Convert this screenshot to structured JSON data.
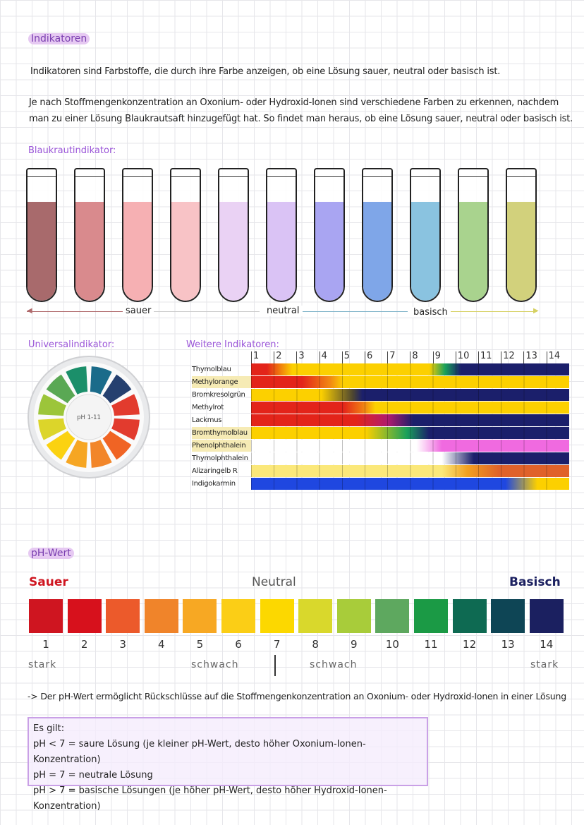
{
  "section1": {
    "title": "Indikatoren",
    "p1": "Indikatoren sind Farbstoffe, die durch ihre Farbe anzeigen, ob eine Lösung sauer, neutral oder basisch ist.",
    "p2a": "Je nach Stoffmengenkonzentration an Oxonium- oder Hydroxid-Ionen sind verschiedene Farben zu erkennen, nachdem",
    "p2b": "man zu einer Lösung Blaukrautsaft hinzugefügt hat. So findet man heraus, ob eine Lösung sauer, neutral oder basisch ist."
  },
  "blaukraut": {
    "title": "Blaukrautindikator:",
    "tube_colors": [
      "#a86a6c",
      "#d98a8d",
      "#f6b0b3",
      "#f8c3c6",
      "#ead2f4",
      "#dac3f5",
      "#a9a5f2",
      "#7fa6e8",
      "#8ac3e0",
      "#a9d38e",
      "#d2d17c"
    ],
    "scale": {
      "sauer": "sauer",
      "neutral": "neutral",
      "basisch": "basisch"
    }
  },
  "universal": {
    "title": "Universalindikator:",
    "center_label": "pH 1-11"
  },
  "weitere": {
    "title": "Weitere Indikatoren:",
    "ph_header": [
      "1",
      "2",
      "3",
      "4",
      "5",
      "6",
      "7",
      "8",
      "9",
      "10",
      "11",
      "12",
      "13",
      "14"
    ],
    "indicators": [
      {
        "name": "Thymolblau",
        "highlight": false,
        "bar": "linear-gradient(90deg,#e3241a 0%,#e3241a 5%,#fcd000 13%,#fcd000 56%,#19a05a 61%,#1b1f6b 66%,#1b1f6b 100%)"
      },
      {
        "name": "Methylorange",
        "highlight": true,
        "bar": "linear-gradient(90deg,#e3241a 0%,#e3241a 16%,#f28a12 25%,#fcd000 29%,#fcd000 100%)"
      },
      {
        "name": "Bromkresolgrün",
        "highlight": false,
        "bar": "linear-gradient(90deg,#fcd000 0%,#fcd000 22%,#4d4630 32%,#1b1f6b 35%,#1b1f6b 100%)"
      },
      {
        "name": "Methylrot",
        "highlight": false,
        "bar": "linear-gradient(90deg,#e3241a 0%,#e3241a 29%,#f28a12 36%,#fcd000 39%,#fcd000 100%)"
      },
      {
        "name": "Lackmus",
        "highlight": false,
        "bar": "linear-gradient(90deg,#e3241a 0%,#e3241a 33%,#b01b6e 43%,#1b1f6b 51%,#1b1f6b 100%)"
      },
      {
        "name": "Bromthymolblau",
        "highlight": true,
        "bar": "linear-gradient(90deg,#fcd000 0%,#fcd000 36%,#19a05a 49%,#1b1f6b 56%,#1b1f6b 100%)"
      },
      {
        "name": "Phenolphthalein",
        "highlight": true,
        "bar": "linear-gradient(90deg,#ffffff 0%,#ffffff 52%,#f06ae0 60%,#f06ae0 100%)"
      },
      {
        "name": "Thymolphthalein",
        "highlight": false,
        "bar": "linear-gradient(90deg,#ffffff 0%,#ffffff 60%,#1b1f6b 70%,#1b1f6b 100%)"
      },
      {
        "name": "Alizaringelb R",
        "highlight": false,
        "bar": "linear-gradient(90deg,#fbe87a 0%,#fbe87a 60%,#f2a020 68%,#e0622a 78%,#e0622a 100%)"
      },
      {
        "name": "Indigokarmin",
        "highlight": false,
        "bar": "linear-gradient(90deg,#1f47e0 0%,#1f47e0 80%,#fcd000 90%,#fcd000 100%)"
      }
    ]
  },
  "phwert": {
    "title": "pH-Wert",
    "sauer": "Sauer",
    "neutral": "Neutral",
    "basisch": "Basisch",
    "colors": [
      "#cf1520",
      "#d7111c",
      "#ec5a2b",
      "#f0842a",
      "#f7a823",
      "#fbce16",
      "#fcd800",
      "#d9d82c",
      "#a8cc3a",
      "#5ea85f",
      "#1b9a45",
      "#0e6a52",
      "#0e4555",
      "#1b2060"
    ],
    "numbers": [
      "1",
      "2",
      "3",
      "4",
      "5",
      "6",
      "7",
      "8",
      "9",
      "10",
      "11",
      "12",
      "13",
      "14"
    ],
    "stark_left": "stark",
    "schwach_left": "schwach",
    "schwach_right": "schwach",
    "stark_right": "stark",
    "note": "-> Der pH-Wert ermöglicht Rückschlüsse auf die Stoffmengenkonzentration an Oxonium- oder Hydroxid-Ionen in einer Lösung"
  },
  "rules": {
    "l1": "Es gilt:",
    "l2": "pH < 7 = saure Lösung (je kleiner pH-Wert, desto höher Oxonium-Ionen-Konzentration)",
    "l3": "pH = 7 = neutrale Lösung",
    "l4": "pH > 7 = basische Lösungen (je höher pH-Wert, desto höher Hydroxid-Ionen-Konzentration)"
  }
}
